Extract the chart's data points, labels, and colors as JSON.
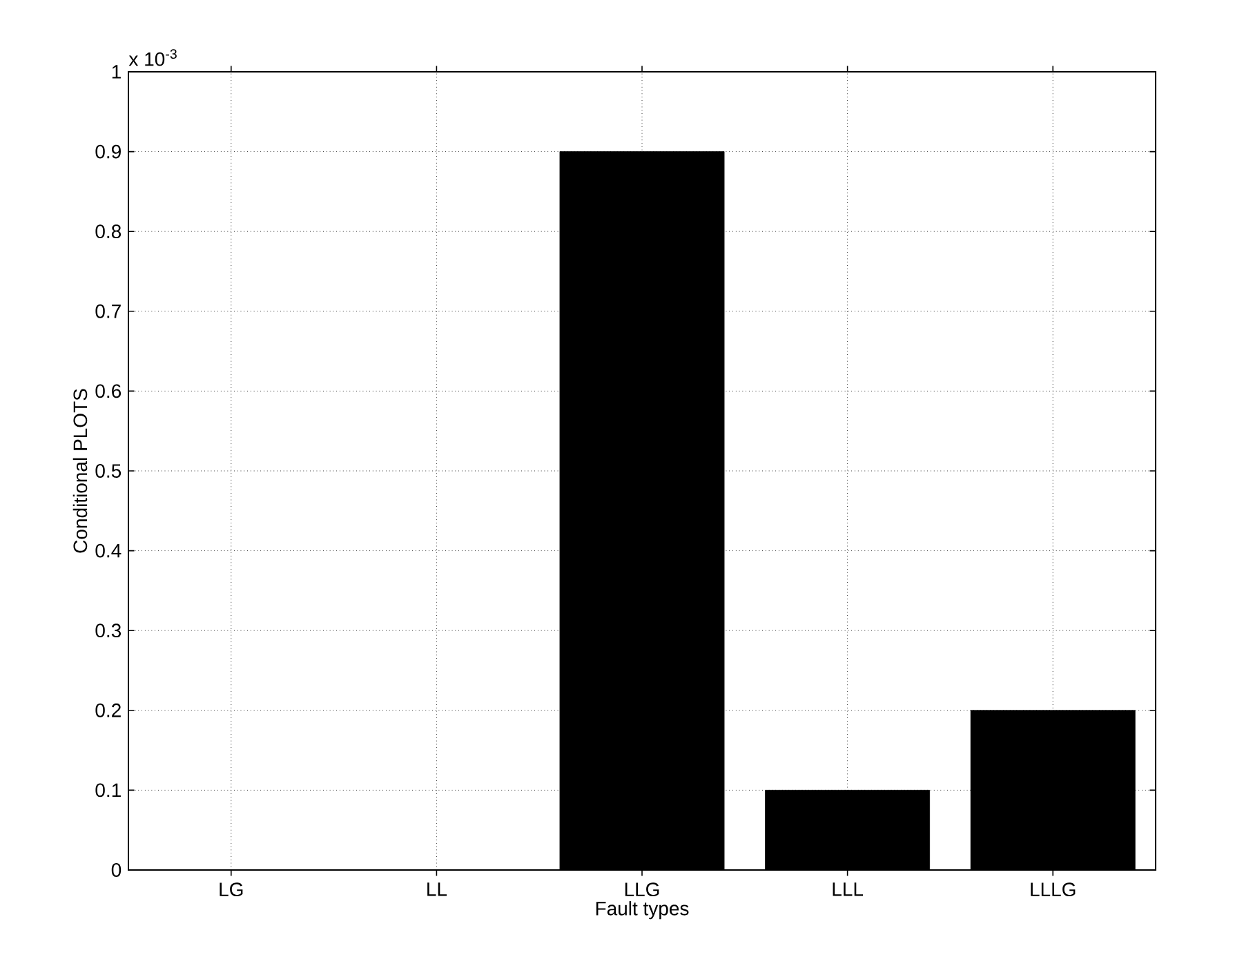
{
  "chart_data": {
    "type": "bar",
    "xlabel": "Fault types",
    "ylabel": "Conditional PLOTS",
    "categories": [
      "LG",
      "LL",
      "LLG",
      "LLL",
      "LLLG"
    ],
    "values": [
      0,
      0,
      0.9,
      0.1,
      0.2
    ],
    "color": "#000000",
    "ylim": [
      0,
      1
    ],
    "yticks": [
      0,
      0.1,
      0.2,
      0.3,
      0.4,
      0.5,
      0.6,
      0.7,
      0.8,
      0.9,
      1
    ],
    "grid": true,
    "annotations": [
      "x 10$^{-3}$"
    ]
  }
}
